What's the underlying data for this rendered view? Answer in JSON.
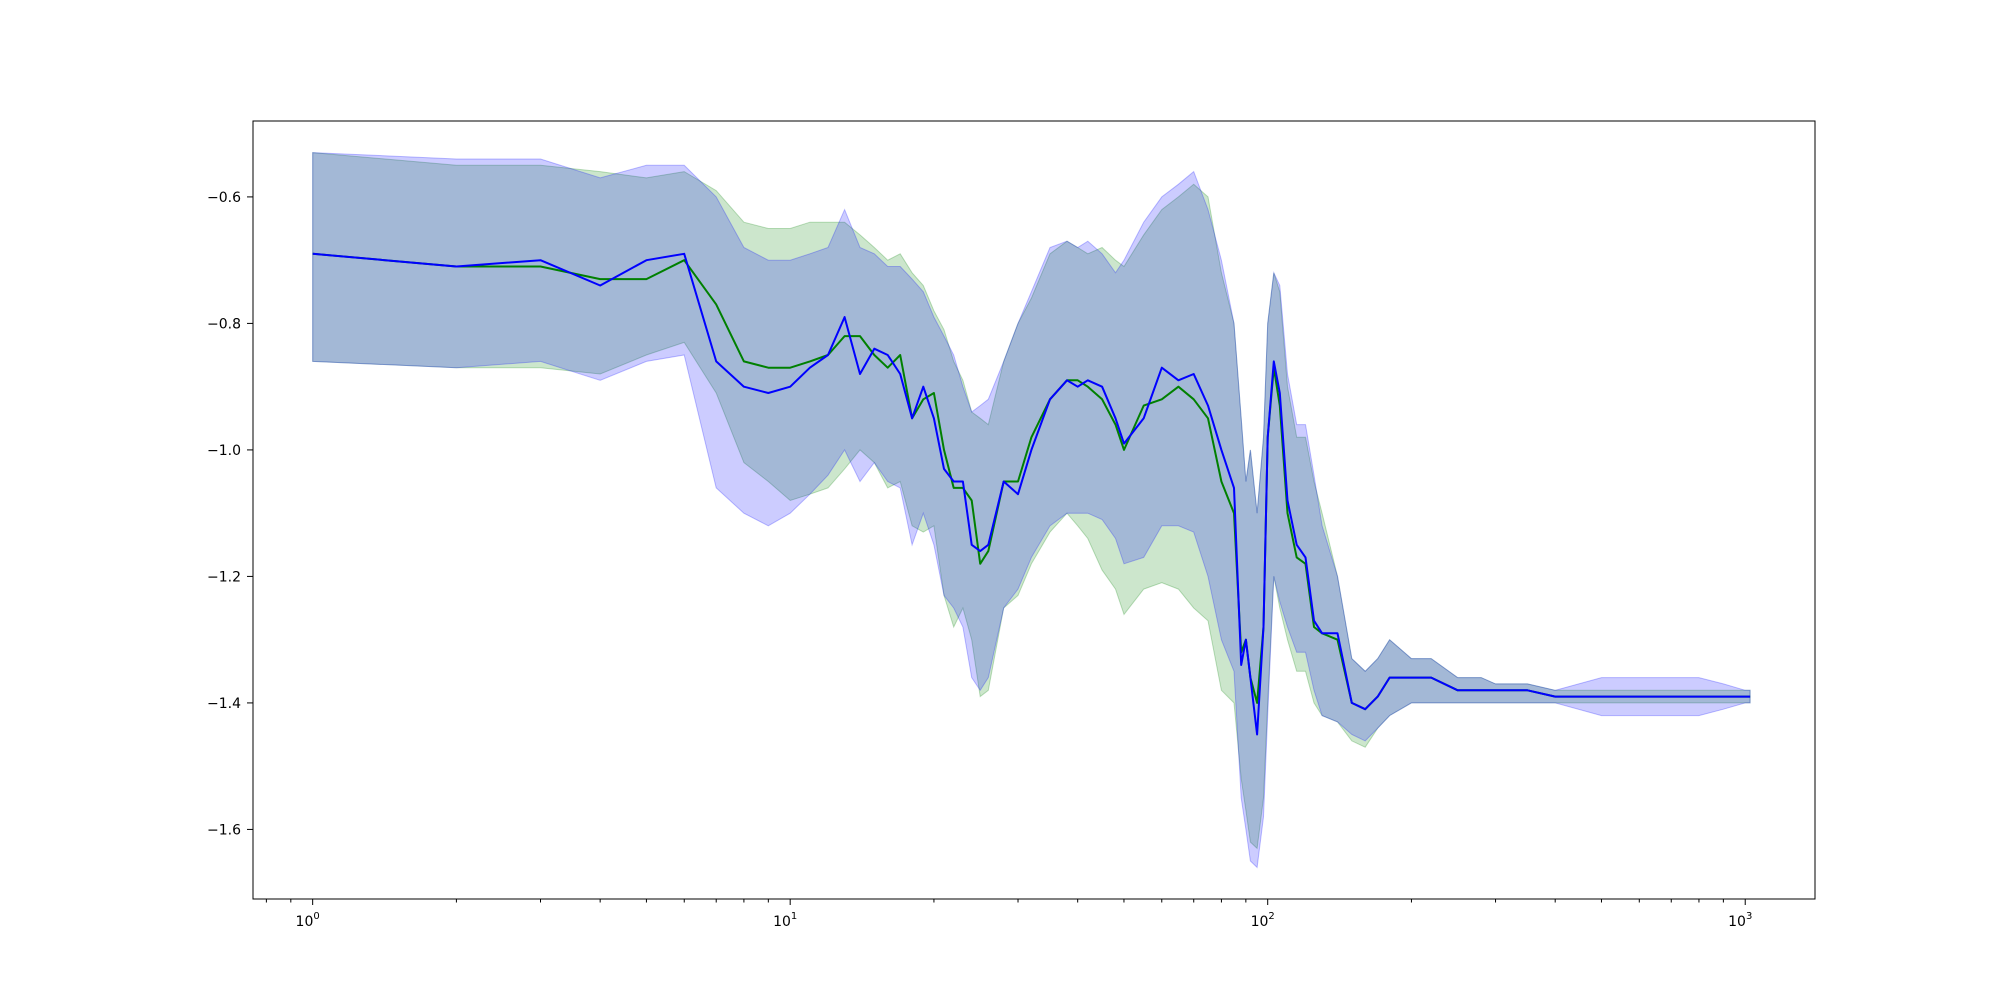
{
  "chart_data": {
    "type": "line",
    "title": "",
    "xlabel": "",
    "ylabel": "",
    "xscale": "log",
    "xlim": [
      0.75,
      1400
    ],
    "ylim": [
      -1.71,
      -0.48
    ],
    "grid": false,
    "legend": "none",
    "x_ticks": [
      {
        "value": 1,
        "base": "10",
        "exp": "0"
      },
      {
        "value": 10,
        "base": "10",
        "exp": "1"
      },
      {
        "value": 100,
        "base": "10",
        "exp": "2"
      },
      {
        "value": 1000,
        "base": "10",
        "exp": "3"
      }
    ],
    "y_ticks": [
      {
        "value": -0.6,
        "label": "−0.6"
      },
      {
        "value": -0.8,
        "label": "−0.8"
      },
      {
        "value": -1.0,
        "label": "−1.0"
      },
      {
        "value": -1.2,
        "label": "−1.2"
      },
      {
        "value": -1.4,
        "label": "−1.4"
      },
      {
        "value": -1.6,
        "label": "−1.6"
      }
    ],
    "series": [
      {
        "color": "#008000",
        "band_color": "#008000",
        "x": [
          1,
          2,
          3,
          4,
          5,
          6,
          7,
          8,
          9,
          10,
          11,
          12,
          13,
          14,
          15,
          16,
          17,
          18,
          19,
          20,
          21,
          22,
          23,
          24,
          25,
          26,
          28,
          30,
          32,
          35,
          38,
          40,
          42,
          45,
          48,
          50,
          55,
          60,
          65,
          70,
          75,
          80,
          85,
          88,
          90,
          92,
          95,
          98,
          100,
          103,
          106,
          110,
          115,
          120,
          125,
          130,
          140,
          150,
          160,
          170,
          180,
          200,
          220,
          250,
          280,
          300,
          350,
          400,
          500,
          600,
          700,
          800,
          900,
          1000,
          1024
        ],
        "y": [
          -0.69,
          -0.71,
          -0.71,
          -0.73,
          -0.73,
          -0.7,
          -0.77,
          -0.86,
          -0.87,
          -0.87,
          -0.86,
          -0.85,
          -0.82,
          -0.82,
          -0.85,
          -0.87,
          -0.85,
          -0.95,
          -0.92,
          -0.91,
          -1.0,
          -1.06,
          -1.06,
          -1.08,
          -1.18,
          -1.16,
          -1.05,
          -1.05,
          -0.98,
          -0.92,
          -0.89,
          -0.89,
          -0.9,
          -0.92,
          -0.96,
          -1.0,
          -0.93,
          -0.92,
          -0.9,
          -0.92,
          -0.95,
          -1.05,
          -1.1,
          -1.32,
          -1.3,
          -1.36,
          -1.4,
          -1.28,
          -0.98,
          -0.87,
          -0.93,
          -1.1,
          -1.17,
          -1.18,
          -1.28,
          -1.29,
          -1.3,
          -1.4,
          -1.41,
          -1.39,
          -1.36,
          -1.36,
          -1.36,
          -1.38,
          -1.38,
          -1.38,
          -1.38,
          -1.39,
          -1.39,
          -1.39,
          -1.39,
          -1.39,
          -1.39,
          -1.39,
          -1.39
        ],
        "upper": [
          -0.53,
          -0.55,
          -0.55,
          -0.56,
          -0.57,
          -0.56,
          -0.59,
          -0.64,
          -0.65,
          -0.65,
          -0.64,
          -0.64,
          -0.64,
          -0.66,
          -0.68,
          -0.7,
          -0.69,
          -0.72,
          -0.74,
          -0.78,
          -0.81,
          -0.86,
          -0.89,
          -0.94,
          -0.95,
          -0.96,
          -0.86,
          -0.8,
          -0.76,
          -0.69,
          -0.67,
          -0.68,
          -0.69,
          -0.68,
          -0.7,
          -0.71,
          -0.66,
          -0.62,
          -0.6,
          -0.58,
          -0.6,
          -0.72,
          -0.8,
          -0.95,
          -1.05,
          -1.0,
          -1.1,
          -0.98,
          -0.8,
          -0.72,
          -0.75,
          -0.9,
          -0.98,
          -0.98,
          -1.05,
          -1.1,
          -1.2,
          -1.33,
          -1.35,
          -1.33,
          -1.3,
          -1.33,
          -1.33,
          -1.36,
          -1.36,
          -1.37,
          -1.37,
          -1.38,
          -1.38,
          -1.38,
          -1.38,
          -1.38,
          -1.38,
          -1.38,
          -1.38
        ],
        "lower": [
          -0.86,
          -0.87,
          -0.87,
          -0.88,
          -0.85,
          -0.83,
          -0.91,
          -1.02,
          -1.05,
          -1.08,
          -1.07,
          -1.06,
          -1.03,
          -1.0,
          -1.02,
          -1.06,
          -1.05,
          -1.12,
          -1.13,
          -1.12,
          -1.23,
          -1.28,
          -1.25,
          -1.3,
          -1.39,
          -1.38,
          -1.25,
          -1.23,
          -1.18,
          -1.13,
          -1.1,
          -1.12,
          -1.14,
          -1.19,
          -1.22,
          -1.26,
          -1.22,
          -1.21,
          -1.22,
          -1.25,
          -1.27,
          -1.38,
          -1.4,
          -1.52,
          -1.57,
          -1.62,
          -1.63,
          -1.55,
          -1.4,
          -1.2,
          -1.25,
          -1.3,
          -1.35,
          -1.35,
          -1.4,
          -1.42,
          -1.43,
          -1.46,
          -1.47,
          -1.44,
          -1.42,
          -1.4,
          -1.4,
          -1.4,
          -1.4,
          -1.4,
          -1.4,
          -1.4,
          -1.4,
          -1.4,
          -1.4,
          -1.4,
          -1.4,
          -1.4,
          -1.4
        ]
      },
      {
        "color": "#0000ff",
        "band_color": "#0000ff",
        "x": [
          1,
          2,
          3,
          4,
          5,
          6,
          7,
          8,
          9,
          10,
          11,
          12,
          13,
          14,
          15,
          16,
          17,
          18,
          19,
          20,
          21,
          22,
          23,
          24,
          25,
          26,
          28,
          30,
          32,
          35,
          38,
          40,
          42,
          45,
          48,
          50,
          55,
          60,
          65,
          70,
          75,
          80,
          85,
          88,
          90,
          92,
          95,
          98,
          100,
          103,
          106,
          110,
          115,
          120,
          125,
          130,
          140,
          150,
          160,
          170,
          180,
          200,
          220,
          250,
          280,
          300,
          350,
          400,
          500,
          600,
          700,
          800,
          900,
          1000,
          1024
        ],
        "y": [
          -0.69,
          -0.71,
          -0.7,
          -0.74,
          -0.7,
          -0.69,
          -0.86,
          -0.9,
          -0.91,
          -0.9,
          -0.87,
          -0.85,
          -0.79,
          -0.88,
          -0.84,
          -0.85,
          -0.88,
          -0.95,
          -0.9,
          -0.95,
          -1.03,
          -1.05,
          -1.05,
          -1.15,
          -1.16,
          -1.15,
          -1.05,
          -1.07,
          -1.0,
          -0.92,
          -0.89,
          -0.9,
          -0.89,
          -0.9,
          -0.95,
          -0.99,
          -0.95,
          -0.87,
          -0.89,
          -0.88,
          -0.93,
          -1.0,
          -1.06,
          -1.34,
          -1.3,
          -1.36,
          -1.45,
          -1.28,
          -0.98,
          -0.86,
          -0.91,
          -1.08,
          -1.15,
          -1.17,
          -1.27,
          -1.29,
          -1.29,
          -1.4,
          -1.41,
          -1.39,
          -1.36,
          -1.36,
          -1.36,
          -1.38,
          -1.38,
          -1.38,
          -1.38,
          -1.39,
          -1.39,
          -1.39,
          -1.39,
          -1.39,
          -1.39,
          -1.39,
          -1.39
        ],
        "upper": [
          -0.53,
          -0.54,
          -0.54,
          -0.57,
          -0.55,
          -0.55,
          -0.6,
          -0.68,
          -0.7,
          -0.7,
          -0.69,
          -0.68,
          -0.62,
          -0.68,
          -0.69,
          -0.71,
          -0.71,
          -0.73,
          -0.75,
          -0.79,
          -0.82,
          -0.85,
          -0.9,
          -0.94,
          -0.93,
          -0.92,
          -0.86,
          -0.8,
          -0.75,
          -0.68,
          -0.67,
          -0.68,
          -0.67,
          -0.69,
          -0.72,
          -0.7,
          -0.64,
          -0.6,
          -0.58,
          -0.56,
          -0.62,
          -0.7,
          -0.8,
          -0.95,
          -1.05,
          -1.0,
          -1.1,
          -0.98,
          -0.8,
          -0.72,
          -0.74,
          -0.88,
          -0.96,
          -0.96,
          -1.04,
          -1.12,
          -1.2,
          -1.33,
          -1.35,
          -1.33,
          -1.3,
          -1.33,
          -1.33,
          -1.36,
          -1.36,
          -1.37,
          -1.37,
          -1.38,
          -1.36,
          -1.36,
          -1.36,
          -1.36,
          -1.37,
          -1.38,
          -1.38
        ],
        "lower": [
          -0.86,
          -0.87,
          -0.86,
          -0.89,
          -0.86,
          -0.85,
          -1.06,
          -1.1,
          -1.12,
          -1.1,
          -1.07,
          -1.04,
          -1.0,
          -1.05,
          -1.02,
          -1.05,
          -1.06,
          -1.15,
          -1.1,
          -1.15,
          -1.23,
          -1.25,
          -1.28,
          -1.36,
          -1.38,
          -1.36,
          -1.25,
          -1.22,
          -1.17,
          -1.12,
          -1.1,
          -1.1,
          -1.1,
          -1.11,
          -1.14,
          -1.18,
          -1.17,
          -1.12,
          -1.12,
          -1.13,
          -1.2,
          -1.3,
          -1.35,
          -1.55,
          -1.6,
          -1.65,
          -1.66,
          -1.58,
          -1.42,
          -1.2,
          -1.24,
          -1.28,
          -1.32,
          -1.32,
          -1.38,
          -1.42,
          -1.43,
          -1.45,
          -1.46,
          -1.44,
          -1.42,
          -1.4,
          -1.4,
          -1.4,
          -1.4,
          -1.4,
          -1.4,
          -1.4,
          -1.42,
          -1.42,
          -1.42,
          -1.42,
          -1.41,
          -1.4,
          -1.4
        ]
      }
    ]
  }
}
